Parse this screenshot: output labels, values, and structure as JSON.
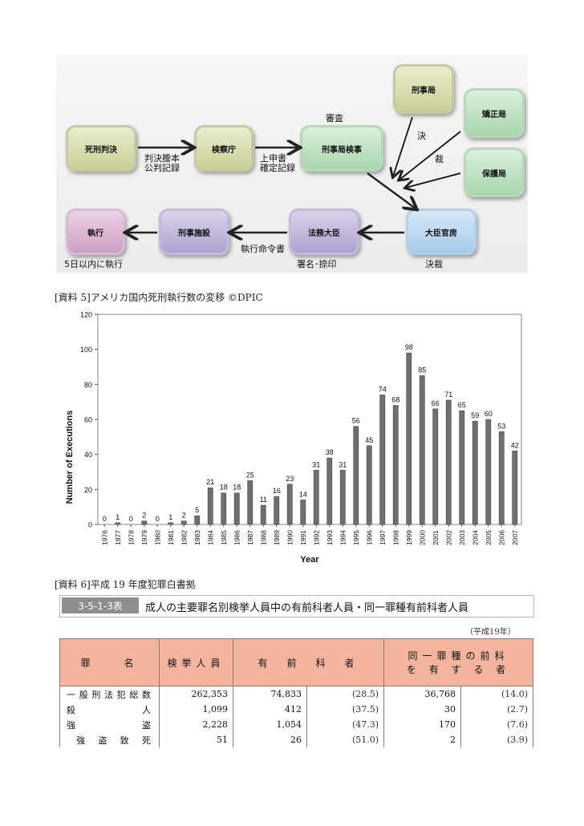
{
  "flow": {
    "nodes": {
      "shikei_hanketsu": "死刑判決",
      "kensatsucho": "検察庁",
      "keijikyoku_kenji": "刑事局検事",
      "keijikyoku": "刑事局",
      "kyoseikyoku": "矯正局",
      "hogokyoku": "保護局",
      "daijin_kanbo": "大臣官房",
      "homu_daijin": "法務大臣",
      "keiji_shisetsu": "刑事施設",
      "shikko": "執行"
    },
    "labels": {
      "hanketsu_tohon": "判決謄本",
      "kohan_kiroku": "公判記録",
      "joshinsho": "上申書",
      "kakutei_kiroku": "確定記録",
      "shinsa": "審査",
      "ketsu": "決",
      "sai": "裁",
      "kessai": "決裁",
      "shomei_natsuin": "署名･捺印",
      "shikko_meireisho": "執行命令書",
      "itsuka_inai": "5日以内に執行"
    }
  },
  "caption5": "[資料 5]アメリカ国内死刑執行数の変移 ©DPIC",
  "caption6": "[資料 6]平成 19 年度犯罪白書拠",
  "chart_data": {
    "type": "bar",
    "xlabel": "Year",
    "ylabel": "Number of Executions",
    "ylim": [
      0,
      120
    ],
    "yticks": [
      0,
      20,
      40,
      60,
      80,
      100,
      120
    ],
    "grid": false,
    "legend": "none",
    "bar_color": "#6f6f6f",
    "categories": [
      "1976",
      "1977",
      "1978",
      "1979",
      "1980",
      "1981",
      "1982",
      "1983",
      "1984",
      "1985",
      "1986",
      "1987",
      "1988",
      "1989",
      "1990",
      "1991",
      "1992",
      "1993",
      "1994",
      "1995",
      "1996",
      "1997",
      "1998",
      "1999",
      "2000",
      "2001",
      "2002",
      "2003",
      "2004",
      "2005",
      "2006",
      "2007"
    ],
    "values": [
      0,
      1,
      0,
      2,
      0,
      1,
      2,
      5,
      21,
      18,
      18,
      25,
      11,
      16,
      23,
      14,
      31,
      38,
      31,
      56,
      45,
      74,
      68,
      98,
      85,
      66,
      71,
      65,
      59,
      60,
      53,
      42
    ]
  },
  "table": {
    "id": "3-5-1-3表",
    "title": "成人の主要罪名別検挙人員中の有前科者人員・同一罪種有前科者人員",
    "year_note": "（平成19年）",
    "headers": {
      "crime": "罪　　名",
      "arrested": "検挙人員",
      "prior": "有　前　科　者",
      "same_prior_1": "同一罪種の前科",
      "same_prior_2": "を 有 す る 者"
    },
    "rows": [
      {
        "name": "一般刑法犯総数",
        "arrested": "262,353",
        "prior": "74,833",
        "prior_pct": "(28.5)",
        "same": "36,768",
        "same_pct": "(14.0)"
      },
      {
        "name": "殺　　　人",
        "arrested": "1,099",
        "prior": "412",
        "prior_pct": "(37.5)",
        "same": "30",
        "same_pct": "(2.7)"
      },
      {
        "name": "強　　　盗",
        "arrested": "2,228",
        "prior": "1,054",
        "prior_pct": "(47.3)",
        "same": "170",
        "same_pct": "(7.6)"
      },
      {
        "name": "強盗致死",
        "arrested": "51",
        "prior": "26",
        "prior_pct": "(51.0)",
        "same": "2",
        "same_pct": "(3.9)"
      }
    ]
  }
}
